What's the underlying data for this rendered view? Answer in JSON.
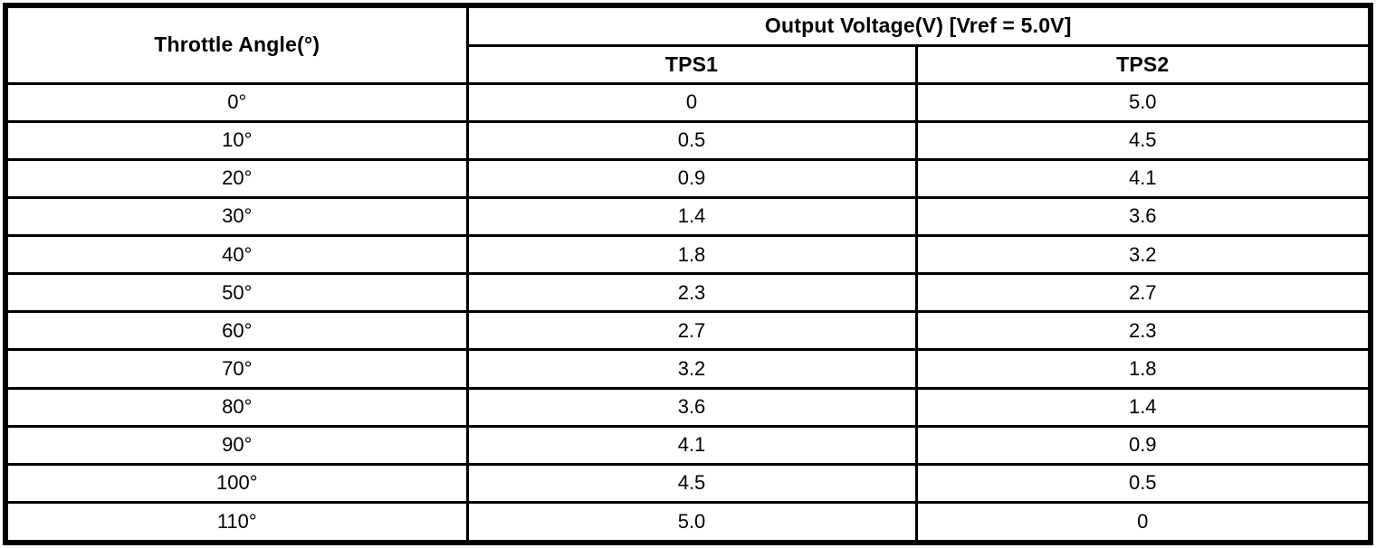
{
  "colors": {
    "border": "#000000",
    "background": "#ffffff",
    "text": "#000000"
  },
  "table": {
    "header": {
      "angle_label": "Throttle Angle(°)",
      "voltage_group_label": "Output Voltage(V) [Vref = 5.0V]",
      "tps1_label": "TPS1",
      "tps2_label": "TPS2"
    },
    "rows": [
      {
        "angle": "0°",
        "tps1": "0",
        "tps2": "5.0"
      },
      {
        "angle": "10°",
        "tps1": "0.5",
        "tps2": "4.5"
      },
      {
        "angle": "20°",
        "tps1": "0.9",
        "tps2": "4.1"
      },
      {
        "angle": "30°",
        "tps1": "1.4",
        "tps2": "3.6"
      },
      {
        "angle": "40°",
        "tps1": "1.8",
        "tps2": "3.2"
      },
      {
        "angle": "50°",
        "tps1": "2.3",
        "tps2": "2.7"
      },
      {
        "angle": "60°",
        "tps1": "2.7",
        "tps2": "2.3"
      },
      {
        "angle": "70°",
        "tps1": "3.2",
        "tps2": "1.8"
      },
      {
        "angle": "80°",
        "tps1": "3.6",
        "tps2": "1.4"
      },
      {
        "angle": "90°",
        "tps1": "4.1",
        "tps2": "0.9"
      },
      {
        "angle": "100°",
        "tps1": "4.5",
        "tps2": "0.5"
      },
      {
        "angle": "110°",
        "tps1": "5.0",
        "tps2": "0"
      }
    ]
  }
}
